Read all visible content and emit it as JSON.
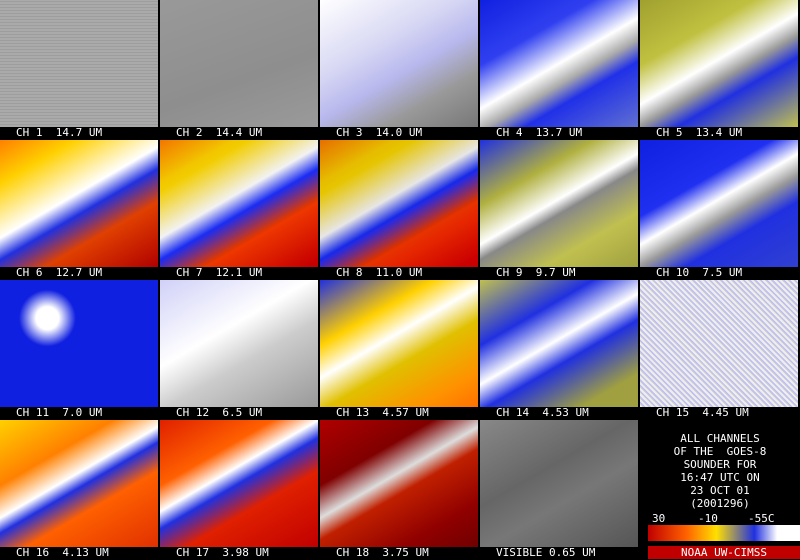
{
  "panels": [
    {
      "label": "CH 1  14.7 UM"
    },
    {
      "label": "CH 2  14.4 UM"
    },
    {
      "label": "CH 3  14.0 UM"
    },
    {
      "label": "CH 4  13.7 UM"
    },
    {
      "label": "CH 5  13.4 UM"
    },
    {
      "label": "CH 6  12.7 UM"
    },
    {
      "label": "CH 7  12.1 UM"
    },
    {
      "label": "CH 8  11.0 UM"
    },
    {
      "label": "CH 9  9.7 UM"
    },
    {
      "label": "CH 10  7.5 UM"
    },
    {
      "label": "CH 11  7.0 UM"
    },
    {
      "label": "CH 12  6.5 UM"
    },
    {
      "label": "CH 13  4.57 UM"
    },
    {
      "label": "CH 14  4.53 UM"
    },
    {
      "label": "CH 15  4.45 UM"
    },
    {
      "label": "CH 16  4.13 UM"
    },
    {
      "label": "CH 17  3.98 UM"
    },
    {
      "label": "CH 18  3.75 UM"
    },
    {
      "label": "VISIBLE 0.65 UM"
    }
  ],
  "info": {
    "lines": [
      "ALL CHANNELS",
      "OF THE  GOES-8",
      "SOUNDER FOR",
      "16:47 UTC ON",
      "23 OCT 01",
      "(2001296)"
    ]
  },
  "colorbar": {
    "labels": [
      "30",
      "-10",
      "-55C"
    ]
  },
  "credit": "NOAA UW-CIMSS"
}
